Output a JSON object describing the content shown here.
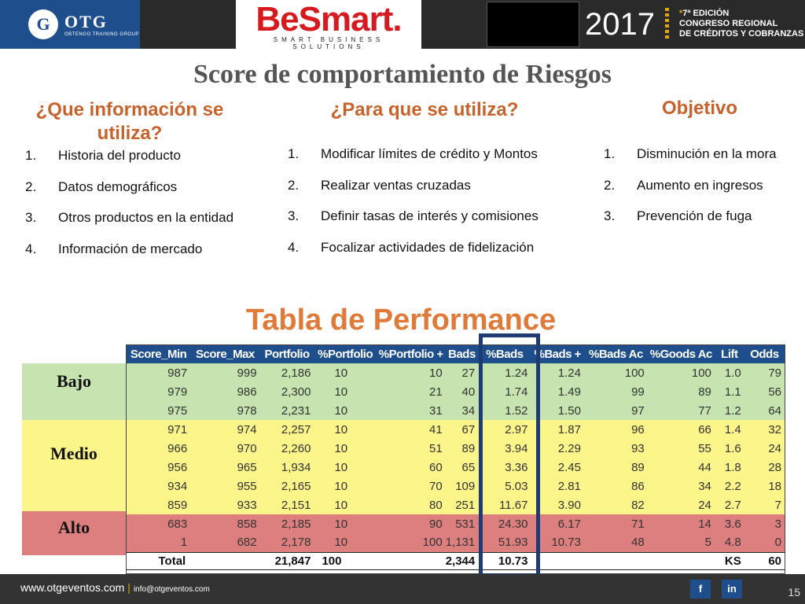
{
  "header": {
    "otg_logo_letter": "G",
    "otg_name": "OTG",
    "otg_sub": "OBTENGO TRAINING GROUP",
    "besmart_name": "BeSmart.",
    "besmart_sub": "SMART BUSINESS SOLUTIONS",
    "year": "2017",
    "event_line1": "7ª EDICIÓN",
    "event_line2": "CONGRESO REGIONAL",
    "event_line3": "DE CRÉDITOS Y COBRANZAS",
    "event_star": "*"
  },
  "title": "Score de comportamiento de Riesgos",
  "columns": [
    {
      "heading": "¿Que información se utiliza?",
      "items": [
        {
          "num": "1.",
          "text": "Historia del producto"
        },
        {
          "num": "2.",
          "text": "Datos demográficos"
        },
        {
          "num": "3.",
          "text": "Otros productos en la entidad"
        },
        {
          "num": "4.",
          "text": "Información de mercado"
        }
      ]
    },
    {
      "heading": "¿Para que se utiliza?",
      "items": [
        {
          "num": "1.",
          "text": "Modificar límites de crédito y Montos"
        },
        {
          "num": "2.",
          "text": "Realizar ventas cruzadas"
        },
        {
          "num": "3.",
          "text": "Definir tasas de interés y comisiones"
        },
        {
          "num": "4.",
          "text": "Focalizar actividades de fidelización"
        }
      ]
    },
    {
      "heading": "Objetivo",
      "items": [
        {
          "num": "1.",
          "text": "Disminución en la mora"
        },
        {
          "num": "2.",
          "text": "Aumento en ingresos"
        },
        {
          "num": "3.",
          "text": "Prevención de fuga"
        }
      ]
    }
  ],
  "performance": {
    "title": "Tabla de Performance",
    "headers": [
      "Score_Min",
      "Score_Max",
      "Portfolio",
      "%Portfolio",
      "%Portfolio +",
      "Bads",
      "%Bads",
      "%Bads +",
      "%Bads Ac",
      "%Goods Ac",
      "Lift",
      "Odds"
    ],
    "bands": [
      {
        "label": "Bajo",
        "color": "#c6e3b0"
      },
      {
        "label": "Medio",
        "color": "#fbf58a"
      },
      {
        "label": "Alto",
        "color": "#de7f7f"
      }
    ],
    "rows": [
      [
        "987",
        "999",
        "2,186",
        "10",
        "10",
        "27",
        "1.24",
        "1.24",
        "100",
        "100",
        "1.0",
        "79"
      ],
      [
        "979",
        "986",
        "2,300",
        "10",
        "21",
        "40",
        "1.74",
        "1.49",
        "99",
        "89",
        "1.1",
        "56"
      ],
      [
        "975",
        "978",
        "2,231",
        "10",
        "31",
        "34",
        "1.52",
        "1.50",
        "97",
        "77",
        "1.2",
        "64"
      ],
      [
        "971",
        "974",
        "2,257",
        "10",
        "41",
        "67",
        "2.97",
        "1.87",
        "96",
        "66",
        "1.4",
        "32"
      ],
      [
        "966",
        "970",
        "2,260",
        "10",
        "51",
        "89",
        "3.94",
        "2.29",
        "93",
        "55",
        "1.6",
        "24"
      ],
      [
        "956",
        "965",
        "1,934",
        "10",
        "60",
        "65",
        "3.36",
        "2.45",
        "89",
        "44",
        "1.8",
        "28"
      ],
      [
        "934",
        "955",
        "2,165",
        "10",
        "70",
        "109",
        "5.03",
        "2.81",
        "86",
        "34",
        "2.2",
        "18"
      ],
      [
        "859",
        "933",
        "2,151",
        "10",
        "80",
        "251",
        "11.67",
        "3.90",
        "82",
        "24",
        "2.7",
        "7"
      ],
      [
        "683",
        "858",
        "2,185",
        "10",
        "90",
        "531",
        "24.30",
        "6.17",
        "71",
        "14",
        "3.6",
        "3"
      ],
      [
        "1",
        "682",
        "2,178",
        "10",
        "100",
        "1,131",
        "51.93",
        "10.73",
        "48",
        "5",
        "4.8",
        "0"
      ]
    ],
    "total": {
      "label": "Total",
      "portfolio": "21,847",
      "pct_portfolio": "100",
      "bads": "2,344",
      "pct_bads": "10.73",
      "ks_label": "KS",
      "ks_value": "60"
    }
  },
  "footer": {
    "website": "www.otgeventos.com",
    "separator": "|",
    "email": "info@otgeventos.com",
    "facebook": "f",
    "linkedin": "in",
    "page": "15"
  },
  "colors": {
    "header_blue": "#1f4e8c",
    "accent_orange": "#c8612a",
    "highlight_border": "#1f3b73"
  }
}
